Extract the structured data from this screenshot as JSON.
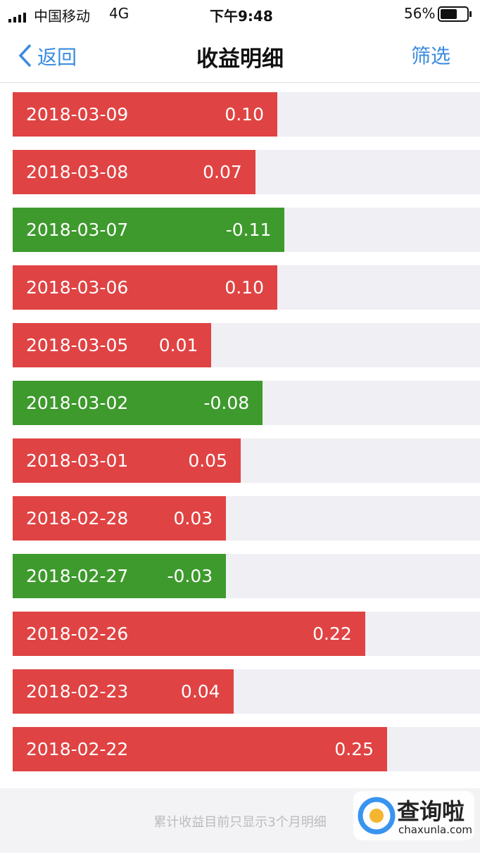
{
  "status_bar": {
    "carrier": "中国移动",
    "network": "4G",
    "time": "下午9:48",
    "battery": "56%"
  },
  "nav": {
    "back": "返回",
    "title": "收益明细",
    "filter": "筛选"
  },
  "colors": {
    "positive": "#e04343",
    "negative": "#3e9a2d"
  },
  "rows": [
    {
      "date": "2018-03-09",
      "value": 0.1,
      "label": "0.10"
    },
    {
      "date": "2018-03-08",
      "value": 0.07,
      "label": "0.07"
    },
    {
      "date": "2018-03-07",
      "value": -0.11,
      "label": "-0.11"
    },
    {
      "date": "2018-03-06",
      "value": 0.1,
      "label": "0.10"
    },
    {
      "date": "2018-03-05",
      "value": 0.01,
      "label": "0.01"
    },
    {
      "date": "2018-03-02",
      "value": -0.08,
      "label": "-0.08"
    },
    {
      "date": "2018-03-01",
      "value": 0.05,
      "label": "0.05"
    },
    {
      "date": "2018-02-28",
      "value": 0.03,
      "label": "0.03"
    },
    {
      "date": "2018-02-27",
      "value": -0.03,
      "label": "-0.03"
    },
    {
      "date": "2018-02-26",
      "value": 0.22,
      "label": "0.22"
    },
    {
      "date": "2018-02-23",
      "value": 0.04,
      "label": "0.04"
    },
    {
      "date": "2018-02-22",
      "value": 0.25,
      "label": "0.25"
    }
  ],
  "footer": {
    "note": "累计收益目前只显示3个月明细"
  },
  "watermark": {
    "name": "查询啦",
    "site": "chaxunla.com"
  }
}
